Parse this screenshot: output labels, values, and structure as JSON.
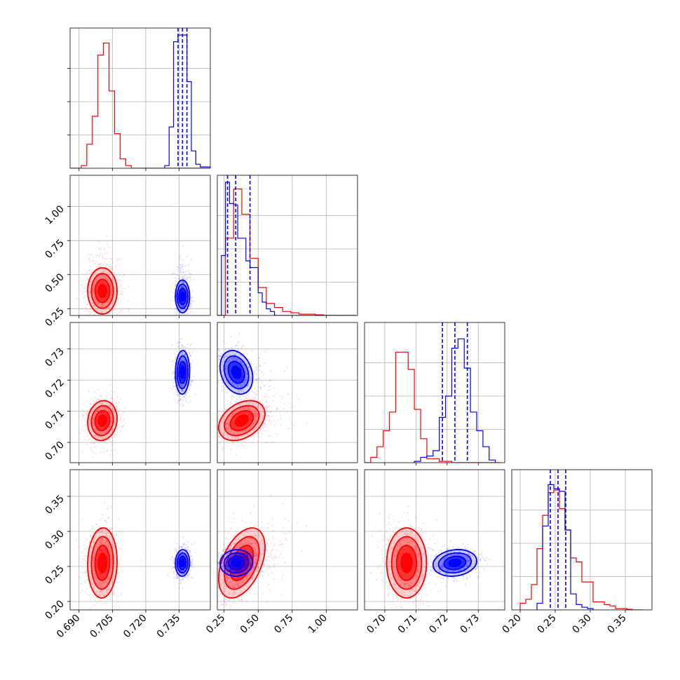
{
  "chart_data": {
    "type": "corner",
    "title": "",
    "parameters": [
      {
        "label": "",
        "range": [
          0.686,
          0.749
        ],
        "ticks": [
          0.69,
          0.705,
          0.72,
          0.735
        ],
        "tick_labels": [
          "0.690",
          "0.705",
          "0.720",
          "0.735"
        ]
      },
      {
        "label": "",
        "range": [
          0.2,
          1.23
        ],
        "ticks": [
          0.25,
          0.5,
          0.75,
          1.0
        ],
        "tick_labels": [
          "0.25",
          "0.50",
          "0.75",
          "1.00"
        ]
      },
      {
        "label": "",
        "range": [
          0.6935,
          0.7385
        ],
        "ticks": [
          0.7,
          0.71,
          0.72,
          0.73
        ],
        "tick_labels": [
          "0.70",
          "0.71",
          "0.72",
          "0.73"
        ]
      },
      {
        "label": "",
        "range": [
          0.188,
          0.388
        ],
        "ticks": [
          0.2,
          0.25,
          0.3,
          0.35
        ],
        "tick_labels": [
          "0.20",
          "0.25",
          "0.30",
          "0.35"
        ]
      }
    ],
    "grid": true,
    "series": [
      {
        "color": "#ff0000",
        "mean": [
          0.7005,
          0.38,
          0.707,
          0.255
        ],
        "std": [
          0.0033,
          0.085,
          0.0032,
          0.025
        ],
        "correlations": {
          "0-1": 0.0,
          "0-2": 0.1,
          "0-3": 0.05,
          "1-2": 0.35,
          "1-3": 0.45,
          "2-3": 0.0
        },
        "quantile_lines": [],
        "histograms": {
          "0": {
            "edges": [
              0.686,
              0.6885,
              0.691,
              0.6935,
              0.696,
              0.6985,
              0.701,
              0.7035,
              0.706,
              0.7085,
              0.711,
              0.7135,
              0.716,
              0.7185,
              0.721,
              0.7235,
              0.726,
              0.7285,
              0.731,
              0.7335,
              0.736,
              0.7385,
              0.741,
              0.7435,
              0.746,
              0.749
            ],
            "counts": [
              0,
              0,
              0.02,
              0.18,
              0.39,
              0.85,
              0.94,
              0.58,
              0.26,
              0.07,
              0.02,
              0,
              0,
              0,
              0,
              0,
              0,
              0,
              0,
              0,
              0,
              0,
              0,
              0,
              0
            ]
          },
          "1": {
            "edges": [
              0.2,
              0.26,
              0.32,
              0.38,
              0.44,
              0.5,
              0.56,
              0.62,
              0.68,
              0.74,
              0.8,
              0.86,
              0.92,
              0.98,
              1.04,
              1.1,
              1.16,
              1.22
            ],
            "counts": [
              0,
              0.58,
              0.95,
              0.76,
              0.43,
              0.21,
              0.09,
              0.06,
              0.03,
              0.02,
              0.01,
              0.01,
              0.005,
              0,
              0,
              0,
              0
            ],
            "tail_end": 1.22
          },
          "2": {
            "edges": [
              0.6935,
              0.6955,
              0.6975,
              0.6995,
              0.7015,
              0.7035,
              0.7055,
              0.7075,
              0.7095,
              0.7115,
              0.7135,
              0.7155,
              0.7175,
              0.7195,
              0.7215,
              0.7235,
              0.7255,
              0.7275,
              0.7295,
              0.7315,
              0.7335,
              0.7355,
              0.7375
            ],
            "counts": [
              0,
              0.04,
              0.12,
              0.24,
              0.38,
              0.83,
              0.83,
              0.7,
              0.4,
              0.18,
              0.03,
              0.03,
              0.01,
              0.01,
              0,
              0,
              0,
              0,
              0,
              0,
              0,
              0
            ]
          },
          "3": {
            "edges": [
              0.2,
              0.208,
              0.216,
              0.224,
              0.232,
              0.24,
              0.248,
              0.256,
              0.264,
              0.272,
              0.28,
              0.288,
              0.296,
              0.304,
              0.312,
              0.32,
              0.328,
              0.336,
              0.344,
              0.352,
              0.36,
              0.368,
              0.376
            ],
            "counts": [
              0.05,
              0.08,
              0.19,
              0.46,
              0.71,
              0.88,
              0.9,
              0.76,
              0.6,
              0.39,
              0.36,
              0.21,
              0.21,
              0.06,
              0.06,
              0.04,
              0.03,
              0.01,
              0.01,
              0.005,
              0,
              0
            ]
          }
        }
      },
      {
        "color": "#0000ff",
        "mean": [
          0.7365,
          0.34,
          0.7225,
          0.255
        ],
        "std": [
          0.0016,
          0.06,
          0.0035,
          0.0095
        ],
        "correlations": {
          "0-1": 0.0,
          "0-2": 0.05,
          "0-3": 0.05,
          "1-2": -0.25,
          "1-3": 0.05,
          "2-3": 0.15
        },
        "quantile_lines": [
          [
            0.7345,
            0.7365,
            0.7385
          ],
          [
            0.275,
            0.335,
            0.44
          ],
          [
            0.7185,
            0.7225,
            0.7265
          ],
          [
            0.243,
            0.254,
            0.265
          ]
        ],
        "histograms": {
          "0": {
            "edges": [
              0.7285,
              0.7305,
              0.7325,
              0.7345,
              0.7365,
              0.7385,
              0.7405,
              0.7425,
              0.7445,
              0.7465,
              0.749
            ],
            "counts": [
              0.02,
              0.31,
              0.95,
              1.0,
              1.0,
              0.65,
              0.13,
              0.03,
              0.01,
              0.01
            ]
          },
          "1": {
            "edges": [
              0.2,
              0.23,
              0.26,
              0.29,
              0.32,
              0.35,
              0.38,
              0.41,
              0.44,
              0.47,
              0.5,
              0.53,
              0.56,
              0.59,
              0.62
            ],
            "counts": [
              0,
              0.45,
              1.0,
              0.84,
              0.83,
              0.58,
              0.58,
              0.41,
              0.36,
              0.36,
              0.17,
              0.1,
              0.05,
              0.03
            ],
            "tail_end": 1.22
          },
          "2": {
            "edges": [
              0.7095,
              0.7115,
              0.7135,
              0.7155,
              0.7175,
              0.7195,
              0.7215,
              0.7235,
              0.7255,
              0.7275,
              0.7295,
              0.7315,
              0.7335,
              0.7355
            ],
            "counts": [
              0.01,
              0.04,
              0.05,
              0.09,
              0.34,
              0.5,
              0.86,
              0.93,
              0.71,
              0.38,
              0.24,
              0.12,
              0.02
            ]
          },
          "3": {
            "edges": [
              0.224,
              0.232,
              0.24,
              0.248,
              0.256,
              0.264,
              0.272,
              0.28,
              0.288,
              0.296,
              0.304
            ],
            "counts": [
              0.05,
              0.63,
              0.94,
              0.91,
              0.89,
              0.6,
              0.12,
              0.04,
              0.02,
              0.01
            ]
          }
        }
      }
    ]
  }
}
